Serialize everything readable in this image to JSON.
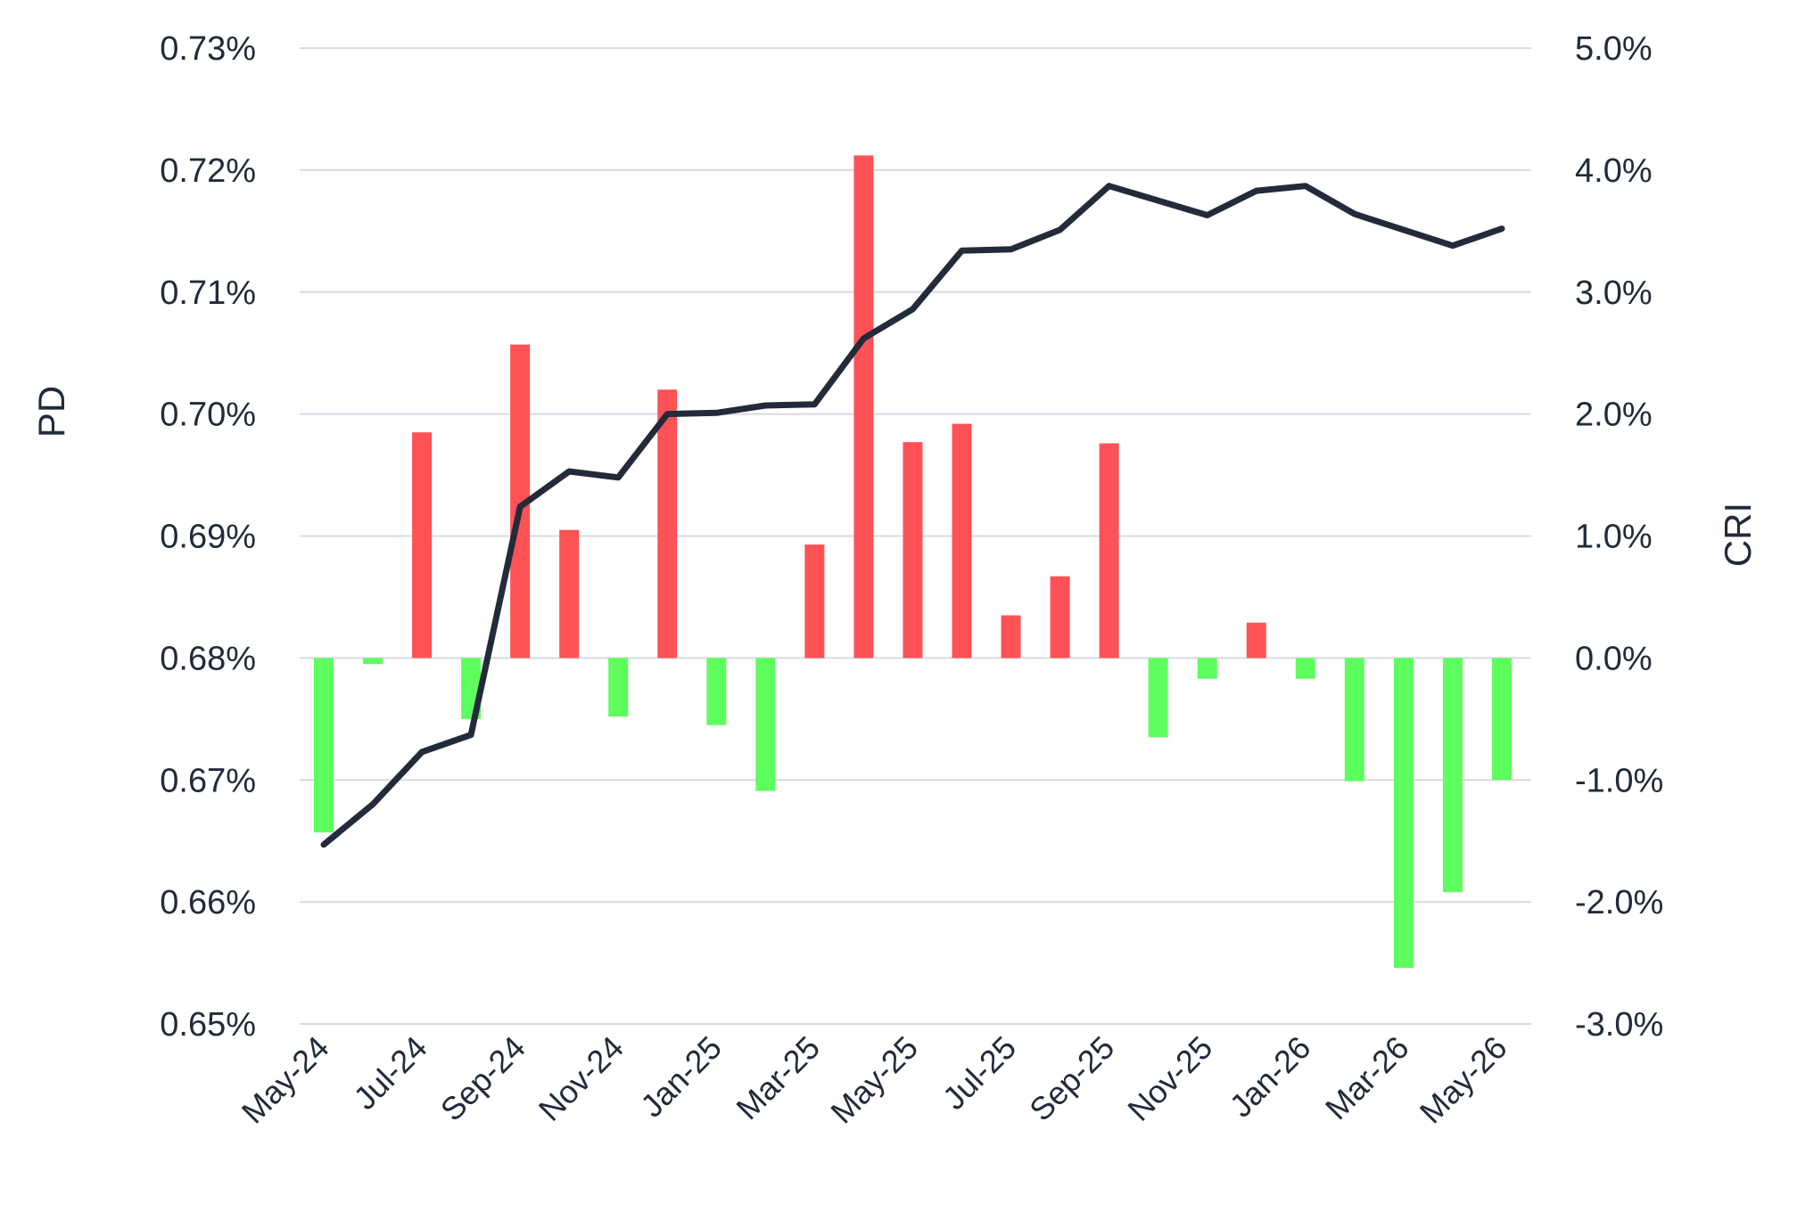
{
  "chart_data": {
    "type": "bar+line",
    "title": "",
    "x": [
      "May-24",
      "Jun-24",
      "Jul-24",
      "Aug-24",
      "Sep-24",
      "Oct-24",
      "Nov-24",
      "Dec-24",
      "Jan-25",
      "Feb-25",
      "Mar-25",
      "Apr-25",
      "May-25",
      "Jun-25",
      "Jul-25",
      "Aug-25",
      "Sep-25",
      "Oct-25",
      "Nov-25",
      "Dec-25",
      "Jan-26",
      "Feb-26",
      "Mar-26",
      "Apr-26",
      "May-26"
    ],
    "x_tick_labels": [
      "May-24",
      "Jul-24",
      "Sep-24",
      "Nov-24",
      "Jan-25",
      "Mar-25",
      "May-25",
      "Jul-25",
      "Sep-25",
      "Nov-25",
      "Jan-26",
      "Mar-26",
      "May-26"
    ],
    "y_left": {
      "label": "PD",
      "range": [
        0.65,
        0.73
      ],
      "tick_labels": [
        "0.73%",
        "0.72%",
        "0.71%",
        "0.70%",
        "0.69%",
        "0.68%",
        "0.67%",
        "0.66%",
        "0.65%"
      ],
      "ticks": [
        0.73,
        0.72,
        0.71,
        0.7,
        0.69,
        0.68,
        0.67,
        0.66,
        0.65
      ]
    },
    "y_right": {
      "label": "CRI",
      "range": [
        -3.0,
        5.0
      ],
      "tick_labels": [
        "5.0%",
        "4.0%",
        "3.0%",
        "2.0%",
        "1.0%",
        "0.0%",
        "-1.0%",
        "-2.0%",
        "-3.0%"
      ],
      "ticks": [
        5,
        4,
        3,
        2,
        1,
        0,
        -1,
        -2,
        -3
      ]
    },
    "series": [
      {
        "type": "line",
        "axis": "left",
        "color": "#232b3b",
        "values": [
          0.6647,
          0.668,
          0.6723,
          0.6737,
          0.6924,
          0.6953,
          0.6948,
          0.7,
          0.7001,
          0.7007,
          0.7008,
          0.7062,
          0.7086,
          0.7134,
          0.7135,
          0.7151,
          0.7187,
          0.7175,
          0.7163,
          0.7183,
          0.7187,
          0.7164,
          0.7151,
          0.7138,
          0.7152
        ]
      },
      {
        "type": "bar",
        "axis": "right",
        "positive_color": "#fe5256",
        "negative_color": "#5efe5e",
        "values": [
          -1.43,
          -0.05,
          1.85,
          -0.5,
          2.57,
          1.05,
          -0.48,
          2.2,
          -0.55,
          -1.09,
          0.93,
          4.12,
          1.77,
          1.92,
          0.35,
          0.67,
          1.76,
          -0.65,
          -0.17,
          0.29,
          -0.17,
          -1.01,
          -2.54,
          -1.92,
          -1.0
        ]
      }
    ],
    "grid": true,
    "legend": "none"
  }
}
